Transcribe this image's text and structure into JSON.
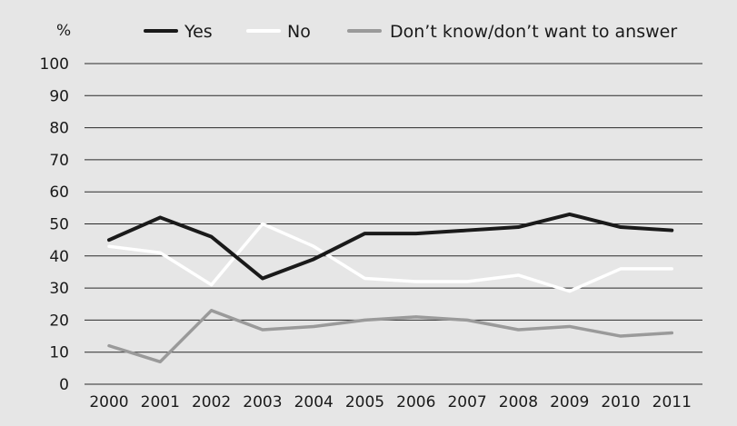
{
  "chart_data": {
    "type": "line",
    "ylabel": "%",
    "ylim": [
      0,
      100
    ],
    "yticks": [
      0,
      10,
      20,
      30,
      40,
      50,
      60,
      70,
      80,
      90,
      100
    ],
    "categories": [
      "2000",
      "2001",
      "2002",
      "2003",
      "2004",
      "2005",
      "2006",
      "2007",
      "2008",
      "2009",
      "2010",
      "2011"
    ],
    "grid": "horizontal",
    "legend_position": "top",
    "series": [
      {
        "name": "Yes",
        "color": "#1a1a1a",
        "values": [
          45,
          52,
          46,
          33,
          39,
          47,
          47,
          48,
          49,
          53,
          49,
          48
        ]
      },
      {
        "name": "No",
        "color": "#ffffff",
        "values": [
          43,
          41,
          31,
          50,
          43,
          33,
          32,
          32,
          34,
          29,
          36,
          36
        ]
      },
      {
        "name": "Don’t know/don’t want to answer",
        "color": "#9a9a9a",
        "values": [
          12,
          7,
          23,
          17,
          18,
          20,
          21,
          20,
          17,
          18,
          15,
          16
        ]
      }
    ]
  }
}
